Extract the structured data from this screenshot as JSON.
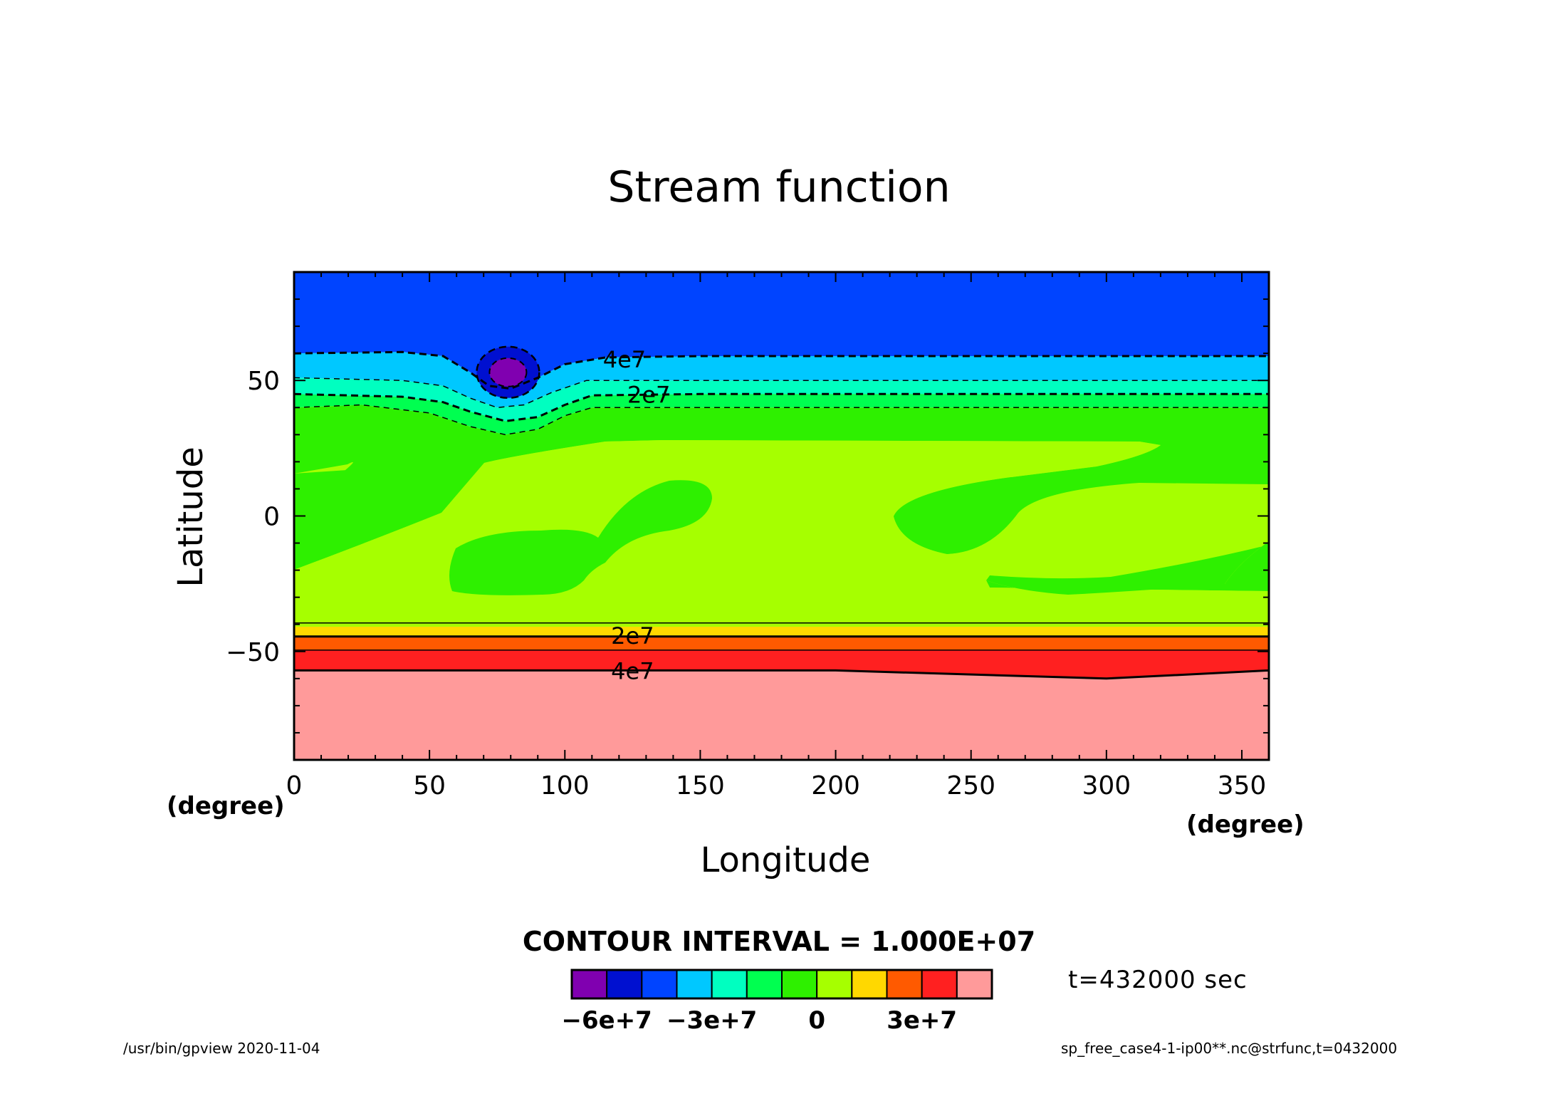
{
  "chart_data": {
    "type": "contour-filled",
    "title": "Stream function",
    "xlabel": "Longitude",
    "ylabel": "Latitude",
    "x_unit": "(degree)",
    "y_unit": "(degree)",
    "xlim": [
      0,
      360
    ],
    "ylim": [
      -90,
      90
    ],
    "x_ticks": [
      0,
      50,
      100,
      150,
      200,
      250,
      300,
      350
    ],
    "y_ticks": [
      -50,
      0,
      50
    ],
    "contour_interval_text": "CONTOUR INTERVAL = 1.000E+07",
    "time_text": "t=432000 sec",
    "contour_labels": [
      {
        "text": "4e7",
        "lon": 122,
        "lat": 58
      },
      {
        "text": "2e7",
        "lon": 131,
        "lat": 45
      },
      {
        "text": "2e7",
        "lon": 125,
        "lat": -44
      },
      {
        "text": "4e7",
        "lon": 125,
        "lat": -57
      }
    ],
    "colorbar": {
      "colors": [
        "#8000b0",
        "#0010d0",
        "#0044ff",
        "#00c8ff",
        "#00ffc0",
        "#00ff50",
        "#2ef000",
        "#a6ff00",
        "#ffd800",
        "#ff5a00",
        "#ff2020",
        "#ff9a9a"
      ],
      "labels": [
        "−6e+7",
        "−3e+7",
        "0",
        "3e+7"
      ]
    }
  },
  "footer": {
    "left": "/usr/bin/gpview   2020-11-04",
    "right": "sp_free_case4-1-ip00**.nc@strfunc,t=0432000"
  }
}
